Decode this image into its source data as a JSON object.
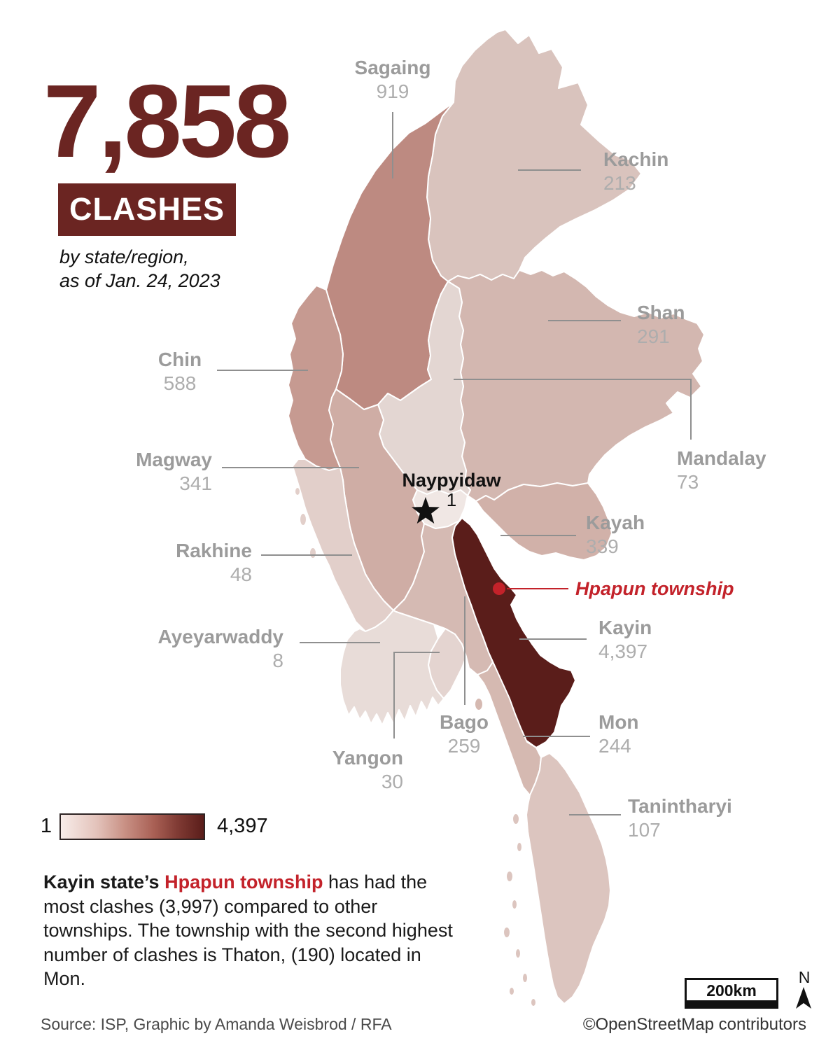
{
  "header": {
    "number": "7,858",
    "label": "CLASHES",
    "subtitle1": "by state/region,",
    "subtitle2": "as of Jan. 24, 2023"
  },
  "map": {
    "regions": [
      {
        "id": "sagaing",
        "name": "Sagaing",
        "value": "919",
        "color": "#bd8a81"
      },
      {
        "id": "kachin",
        "name": "Kachin",
        "value": "213",
        "color": "#d9c3bd"
      },
      {
        "id": "shan",
        "name": "Shan",
        "value": "291",
        "color": "#d3b7b0"
      },
      {
        "id": "chin",
        "name": "Chin",
        "value": "588",
        "color": "#c69a91"
      },
      {
        "id": "mandalay",
        "name": "Mandalay",
        "value": "73",
        "color": "#e3d6d2"
      },
      {
        "id": "magway",
        "name": "Magway",
        "value": "341",
        "color": "#cfada5"
      },
      {
        "id": "naypyidaw",
        "name": "Naypyidaw",
        "value": "1",
        "color": "#f0e7e4"
      },
      {
        "id": "kayah",
        "name": "Kayah",
        "value": "339",
        "color": "#d1b1a9"
      },
      {
        "id": "rakhine",
        "name": "Rakhine",
        "value": "48",
        "color": "#e2cfca"
      },
      {
        "id": "kayin",
        "name": "Kayin",
        "value": "4,397",
        "color": "#5a1d1a"
      },
      {
        "id": "bago",
        "name": "Bago",
        "value": "259",
        "color": "#d5bab3"
      },
      {
        "id": "yangon",
        "name": "Yangon",
        "value": "30",
        "color": "#e4d4d0"
      },
      {
        "id": "ayeyarwaddy",
        "name": "Ayeyarwaddy",
        "value": "8",
        "color": "#e8dcd8"
      },
      {
        "id": "mon",
        "name": "Mon",
        "value": "244",
        "color": "#d5b9b1"
      },
      {
        "id": "tanintharyi",
        "name": "Tanintharyi",
        "value": "107",
        "color": "#dcc5bf"
      }
    ],
    "annotation": {
      "label": "Hpapun township",
      "color": "#c3222a"
    },
    "capital_marker_color": "#111111",
    "leader_line_color": "#8f8f8f"
  },
  "legend": {
    "min": "1",
    "max": "4,397"
  },
  "note": {
    "lead": "Kayin state’s ",
    "highlight": "Hpapun township",
    "body": " has had the most clashes (3,997) compared to other townships. The township with the second highest number of clashes is Thaton, (190) located in Mon."
  },
  "footer": {
    "source": "Source: ISP, Graphic by Amanda Weisbrod / RFA",
    "scale_label": "200km",
    "north_label": "N",
    "credit": "©OpenStreetMap contributors"
  }
}
